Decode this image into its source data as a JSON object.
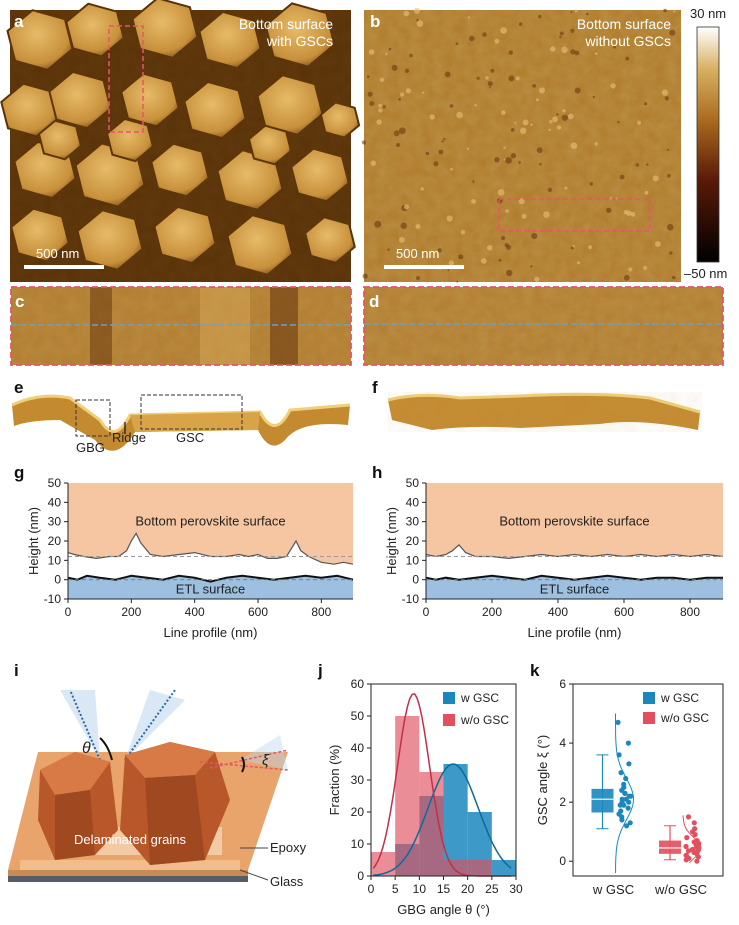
{
  "panels": {
    "a": {
      "label": "a",
      "caption_line1": "Bottom surface",
      "caption_line2": "with GSCs",
      "scale": "500 nm"
    },
    "b": {
      "label": "b",
      "caption_line1": "Bottom surface",
      "caption_line2": "without GSCs",
      "scale": "500 nm"
    },
    "colorbar": {
      "max": "30 nm",
      "min": "–50 nm"
    },
    "c": {
      "label": "c"
    },
    "d": {
      "label": "d"
    },
    "e": {
      "label": "e",
      "gbg": "GBG",
      "ridge": "Ridge",
      "gsc": "GSC"
    },
    "f": {
      "label": "f"
    },
    "i": {
      "label": "i",
      "theta": "θ",
      "xi": "ξ",
      "delaminated": "Delaminated grains",
      "epoxy": "Epoxy",
      "glass": "Glass"
    }
  },
  "colors": {
    "afm_dark": "#4a2a06",
    "afm_mid": "#b07a2a",
    "afm_light": "#f2d89a",
    "top_fill": "#f6c6a3",
    "bottom_fill": "#9dbfe0",
    "gsc_blue": "#1b87bd",
    "nogsc_red": "#e0505e",
    "dash_red": "#e8546a",
    "dash_blue": "#6aa0d0"
  },
  "chart_data": [
    {
      "id": "g",
      "type": "area",
      "label": "g",
      "xlabel": "Line profile (nm)",
      "ylabel": "Height (nm)",
      "xlim": [
        0,
        900
      ],
      "ylim": [
        -10,
        50
      ],
      "xticks": [
        0,
        200,
        400,
        600,
        800
      ],
      "yticks": [
        -10,
        0,
        10,
        20,
        30,
        40,
        50
      ],
      "top_region_label": "Bottom perovskite surface",
      "bottom_region_label": "ETL surface",
      "top_x": [
        0,
        20,
        50,
        90,
        130,
        160,
        185,
        200,
        215,
        230,
        260,
        300,
        350,
        400,
        450,
        500,
        540,
        570,
        600,
        630,
        660,
        690,
        705,
        720,
        735,
        760,
        800,
        840,
        870,
        900
      ],
      "top_y": [
        14,
        13,
        12,
        11,
        12,
        12,
        15,
        20,
        24,
        19,
        13,
        12,
        13,
        14,
        12,
        12,
        13,
        12,
        13,
        11,
        11,
        12,
        16,
        20,
        15,
        12,
        9,
        8,
        9,
        8
      ],
      "etl_x": [
        0,
        30,
        60,
        100,
        150,
        200,
        250,
        300,
        350,
        400,
        450,
        500,
        550,
        600,
        650,
        700,
        750,
        800,
        850,
        900
      ],
      "etl_y": [
        1,
        0,
        2,
        1,
        0,
        2,
        1,
        0,
        2,
        1,
        -1,
        1,
        2,
        1,
        0,
        1,
        2,
        1,
        2,
        0
      ],
      "ref_line": 12
    },
    {
      "id": "h",
      "type": "area",
      "label": "h",
      "xlabel": "Line profile (nm)",
      "ylabel": "Height (nm)",
      "xlim": [
        0,
        900
      ],
      "ylim": [
        -10,
        50
      ],
      "xticks": [
        0,
        200,
        400,
        600,
        800
      ],
      "yticks": [
        -10,
        0,
        10,
        20,
        30,
        40,
        50
      ],
      "top_region_label": "Bottom perovskite surface",
      "bottom_region_label": "ETL surface",
      "top_x": [
        0,
        30,
        60,
        80,
        100,
        120,
        150,
        200,
        250,
        300,
        350,
        400,
        450,
        500,
        550,
        600,
        650,
        700,
        750,
        800,
        850,
        900
      ],
      "top_y": [
        13,
        12,
        13,
        15,
        18,
        14,
        12,
        12,
        11,
        12,
        13,
        12,
        13,
        12,
        13,
        12,
        13,
        12,
        13,
        12,
        13,
        12
      ],
      "etl_x": [
        0,
        30,
        60,
        100,
        150,
        200,
        250,
        300,
        350,
        400,
        450,
        500,
        550,
        600,
        650,
        700,
        750,
        800,
        850,
        900
      ],
      "etl_y": [
        1,
        0,
        1,
        0,
        1,
        2,
        1,
        0,
        2,
        1,
        0,
        1,
        2,
        1,
        0,
        1,
        1,
        0,
        1,
        1
      ],
      "ref_line": 12
    },
    {
      "id": "j",
      "type": "bar",
      "label": "j",
      "xlabel": "GBG angle θ (°)",
      "ylabel": "Fraction (%)",
      "xlim": [
        0,
        30
      ],
      "ylim": [
        0,
        60
      ],
      "xticks": [
        0,
        5,
        10,
        15,
        20,
        25,
        30
      ],
      "yticks": [
        0,
        10,
        20,
        30,
        40,
        50,
        60
      ],
      "bin_width": 5,
      "series": [
        {
          "name": "w GSC",
          "bin_starts": [
            5,
            10,
            15,
            20,
            25
          ],
          "values": [
            10,
            25,
            35,
            20,
            5
          ]
        },
        {
          "name": "w/o GSC",
          "bin_starts": [
            0,
            5,
            10,
            15,
            20
          ],
          "values": [
            7.5,
            50,
            32.5,
            5,
            5
          ]
        }
      ],
      "fits": [
        {
          "series": "w GSC",
          "mean": 17,
          "sd": 5.2,
          "peak": 35
        },
        {
          "series": "w/o GSC",
          "mean": 8.8,
          "sd": 3.3,
          "peak": 57
        }
      ]
    },
    {
      "id": "k",
      "type": "scatter",
      "label": "k",
      "ylabel": "GSC angle ξ (°)",
      "ylim": [
        -0.5,
        6
      ],
      "yticks": [
        0,
        2,
        4,
        6
      ],
      "categories": [
        "w GSC",
        "w/o GSC"
      ],
      "legend": [
        "w GSC",
        "w/o GSC"
      ],
      "box": [
        {
          "min": 1.1,
          "q1": 1.65,
          "median": 2.1,
          "q3": 2.45,
          "max": 3.6
        },
        {
          "min": 0.05,
          "q1": 0.25,
          "median": 0.45,
          "q3": 0.7,
          "max": 1.2
        }
      ],
      "points": [
        [
          1.2,
          1.3,
          1.5,
          1.6,
          1.7,
          1.8,
          1.9,
          2.0,
          2.0,
          2.1,
          2.1,
          2.2,
          2.2,
          2.3,
          2.4,
          2.5,
          2.6,
          2.8,
          3.0,
          3.3,
          3.6,
          4.0,
          4.7,
          1.4,
          1.9,
          2.3
        ],
        [
          0.0,
          0.05,
          0.1,
          0.1,
          0.15,
          0.2,
          0.25,
          0.3,
          0.3,
          0.35,
          0.4,
          0.45,
          0.5,
          0.5,
          0.55,
          0.6,
          0.65,
          0.7,
          0.8,
          0.9,
          1.0,
          1.1,
          1.3,
          1.5,
          0.2,
          0.4
        ]
      ]
    }
  ]
}
